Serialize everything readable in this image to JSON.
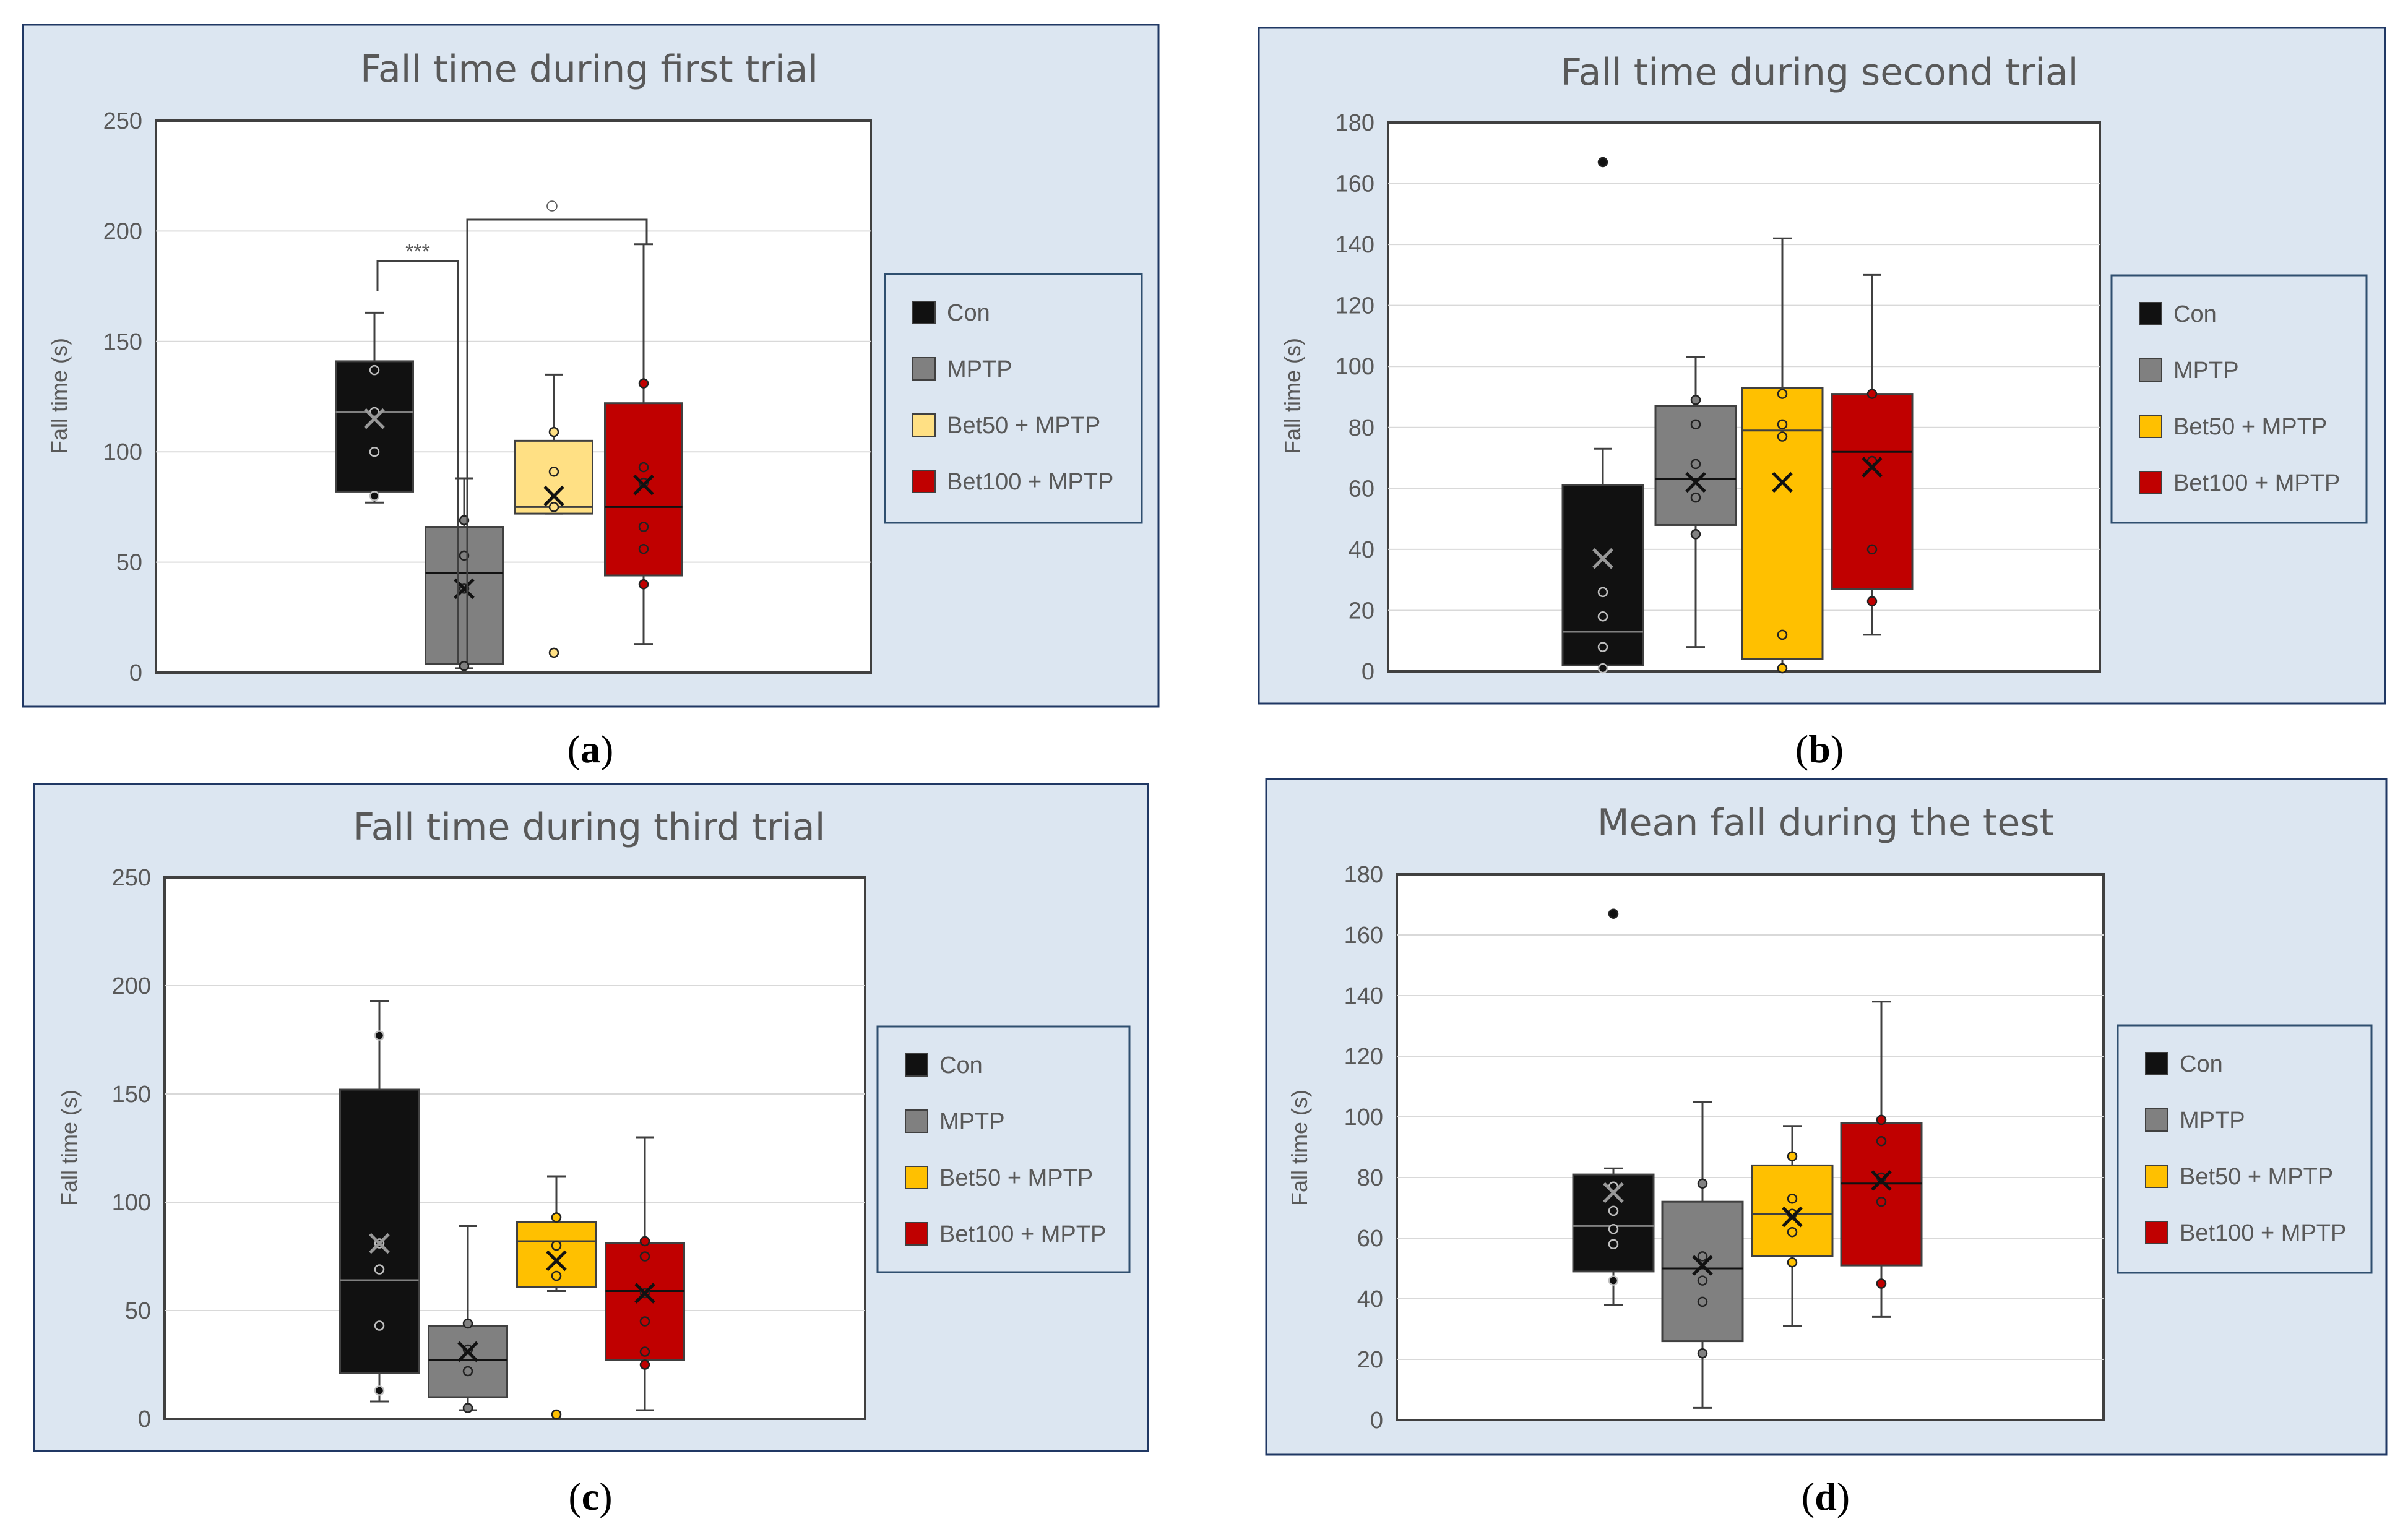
{
  "colors": {
    "panel_bg": "#dce6f1",
    "panel_border": "#203864",
    "Con": "#111111",
    "MPTP": "#808080",
    "Bet50_light": "#ffe084",
    "Bet50": "#ffc000",
    "Bet100": "#c00000"
  },
  "legend": [
    "Con",
    "MPTP",
    "Bet50 + MPTP",
    "Bet100 + MPTP"
  ],
  "chart_data": [
    {
      "panel_label": "a",
      "type": "box",
      "title": "Fall time during first trial",
      "ylabel": "Fall time (s)",
      "ylim": [
        0,
        250
      ],
      "yticks": [
        0,
        50,
        100,
        150,
        200,
        250
      ],
      "grid": true,
      "legend_position": "right",
      "series": [
        {
          "name": "Con",
          "whisker_low": 77,
          "q1": 82,
          "median": 118,
          "q3": 141,
          "whisker_high": 163,
          "mean": 115,
          "points": [
            80,
            100,
            118,
            137
          ],
          "outliers": []
        },
        {
          "name": "MPTP",
          "whisker_low": 2,
          "q1": 4,
          "median": 45,
          "q3": 66,
          "whisker_high": 88,
          "mean": 38,
          "points": [
            3,
            38,
            53,
            69
          ],
          "outliers": []
        },
        {
          "name": "Bet50 + MPTP",
          "whisker_low": 72,
          "q1": 72,
          "median": 75,
          "q3": 105,
          "whisker_high": 135,
          "mean": 80,
          "points": [
            75,
            91,
            109
          ],
          "outliers": [
            9
          ]
        },
        {
          "name": "Bet100 + MPTP",
          "whisker_low": 13,
          "q1": 44,
          "median": 75,
          "q3": 122,
          "whisker_high": 194,
          "mean": 85,
          "points": [
            40,
            56,
            66,
            86,
            93,
            131
          ],
          "outliers": []
        }
      ],
      "annotations": [
        {
          "text": "***",
          "between": [
            "Con",
            "MPTP"
          ]
        },
        {
          "text": "○",
          "between": [
            "MPTP",
            "Bet100 + MPTP"
          ]
        }
      ]
    },
    {
      "panel_label": "b",
      "type": "box",
      "title": "Fall time during second trial",
      "ylabel": "Fall time (s)",
      "ylim": [
        0,
        180
      ],
      "yticks": [
        0,
        20,
        40,
        60,
        80,
        100,
        120,
        140,
        160,
        180
      ],
      "grid": true,
      "legend_position": "right",
      "series": [
        {
          "name": "Con",
          "whisker_low": 0,
          "q1": 2,
          "median": 13,
          "q3": 61,
          "whisker_high": 73,
          "mean": 37,
          "points": [
            1,
            8,
            18,
            26
          ],
          "outliers": [
            167
          ]
        },
        {
          "name": "MPTP",
          "whisker_low": 8,
          "q1": 48,
          "median": 63,
          "q3": 87,
          "whisker_high": 103,
          "mean": 62,
          "points": [
            45,
            57,
            68,
            81,
            89
          ],
          "outliers": []
        },
        {
          "name": "Bet50 + MPTP",
          "whisker_low": 0,
          "q1": 4,
          "median": 79,
          "q3": 93,
          "whisker_high": 142,
          "mean": 62,
          "points": [
            1,
            12,
            77,
            81,
            91
          ],
          "outliers": []
        },
        {
          "name": "Bet100 + MPTP",
          "whisker_low": 12,
          "q1": 27,
          "median": 72,
          "q3": 91,
          "whisker_high": 130,
          "mean": 67,
          "points": [
            23,
            40,
            69,
            91
          ],
          "outliers": []
        }
      ]
    },
    {
      "panel_label": "c",
      "type": "box",
      "title": "Fall time during third trial",
      "ylabel": "Fall time (s)",
      "ylim": [
        0,
        250
      ],
      "yticks": [
        0,
        50,
        100,
        150,
        200,
        250
      ],
      "grid": true,
      "legend_position": "right",
      "series": [
        {
          "name": "Con",
          "whisker_low": 8,
          "q1": 21,
          "median": 64,
          "q3": 152,
          "whisker_high": 193,
          "mean": 81,
          "points": [
            13,
            43,
            69,
            81,
            177
          ],
          "outliers": []
        },
        {
          "name": "MPTP",
          "whisker_low": 4,
          "q1": 10,
          "median": 27,
          "q3": 43,
          "whisker_high": 89,
          "mean": 31,
          "points": [
            5,
            22,
            32,
            44
          ],
          "outliers": []
        },
        {
          "name": "Bet50 + MPTP",
          "whisker_low": 59,
          "q1": 61,
          "median": 82,
          "q3": 91,
          "whisker_high": 112,
          "mean": 73,
          "points": [
            66,
            80,
            93
          ],
          "outliers": [
            2
          ]
        },
        {
          "name": "Bet100 + MPTP",
          "whisker_low": 4,
          "q1": 27,
          "median": 59,
          "q3": 81,
          "whisker_high": 130,
          "mean": 58,
          "points": [
            25,
            31,
            45,
            58,
            75,
            82
          ],
          "outliers": []
        }
      ]
    },
    {
      "panel_label": "d",
      "type": "box",
      "title": "Mean fall during the test",
      "ylabel": "Fall time (s)",
      "ylim": [
        0,
        180
      ],
      "yticks": [
        0,
        20,
        40,
        60,
        80,
        100,
        120,
        140,
        160,
        180
      ],
      "grid": true,
      "legend_position": "right",
      "series": [
        {
          "name": "Con",
          "whisker_low": 38,
          "q1": 49,
          "median": 64,
          "q3": 81,
          "whisker_high": 83,
          "mean": 75,
          "points": [
            46,
            58,
            63,
            69,
            77
          ],
          "outliers": [
            167
          ]
        },
        {
          "name": "MPTP",
          "whisker_low": 4,
          "q1": 26,
          "median": 50,
          "q3": 72,
          "whisker_high": 105,
          "mean": 51,
          "points": [
            22,
            39,
            46,
            54,
            78
          ],
          "outliers": []
        },
        {
          "name": "Bet50 + MPTP",
          "whisker_low": 31,
          "q1": 54,
          "median": 68,
          "q3": 84,
          "whisker_high": 97,
          "mean": 67,
          "points": [
            52,
            62,
            68,
            73,
            87
          ],
          "outliers": []
        },
        {
          "name": "Bet100 + MPTP",
          "whisker_low": 34,
          "q1": 51,
          "median": 78,
          "q3": 98,
          "whisker_high": 138,
          "mean": 79,
          "points": [
            45,
            72,
            80,
            92,
            99
          ],
          "outliers": []
        }
      ]
    }
  ]
}
